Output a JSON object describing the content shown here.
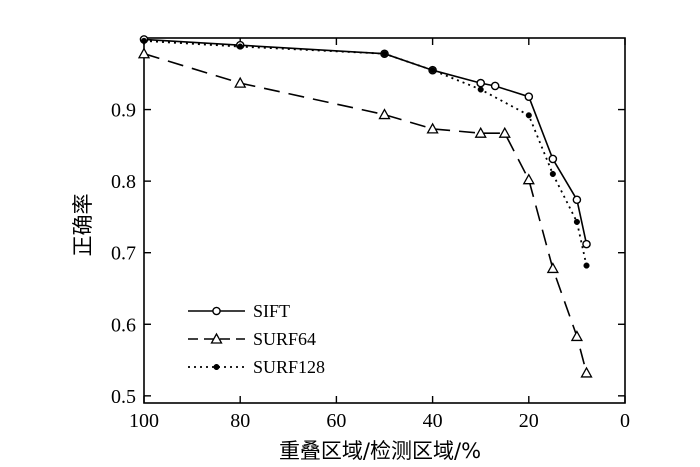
{
  "chart_data": {
    "type": "line",
    "title": "",
    "xlabel": "重叠区域/检测区域/%",
    "ylabel": "正确率",
    "xlim": [
      100,
      0
    ],
    "ylim": [
      0.49,
      1.0
    ],
    "x_ticks": [
      "100",
      "80",
      "60",
      "40",
      "20",
      "0"
    ],
    "y_ticks": [
      "0.5",
      "0.6",
      "0.7",
      "0.8",
      "0.9"
    ],
    "grid": false,
    "legend_position": "bottom-left",
    "series": [
      {
        "name": "SIFT",
        "line_style": "solid",
        "marker": "open-circle",
        "x": [
          100,
          80,
          50,
          40,
          30,
          27,
          20,
          15,
          10,
          8
        ],
        "y": [
          0.998,
          0.99,
          0.978,
          0.955,
          0.937,
          0.933,
          0.918,
          0.831,
          0.774,
          0.712
        ]
      },
      {
        "name": "SURF64",
        "line_style": "dashed",
        "marker": "open-triangle",
        "x": [
          100,
          80,
          50,
          40,
          30,
          25,
          20,
          15,
          10,
          8
        ],
        "y": [
          0.978,
          0.937,
          0.893,
          0.873,
          0.867,
          0.867,
          0.802,
          0.678,
          0.583,
          0.532
        ]
      },
      {
        "name": "SURF128",
        "line_style": "dotted",
        "marker": "filled-dot",
        "x": [
          100,
          80,
          50,
          40,
          30,
          20,
          15,
          10,
          8
        ],
        "y": [
          0.996,
          0.988,
          0.978,
          0.955,
          0.928,
          0.892,
          0.81,
          0.743,
          0.682
        ]
      }
    ]
  }
}
